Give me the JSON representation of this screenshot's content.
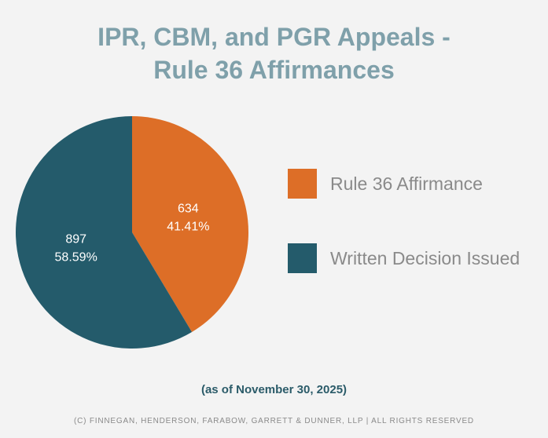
{
  "chart_data": {
    "type": "pie",
    "title_lines": [
      "IPR, CBM, and PGR Appeals -",
      "Rule 36 Affirmances"
    ],
    "slices": [
      {
        "label": "Rule 36 Affirmance",
        "value": 634,
        "percent_label": "41.41%",
        "color": "#dd6e27"
      },
      {
        "label": "Written Decision Issued",
        "value": 897,
        "percent_label": "58.59%",
        "color": "#245b6b"
      }
    ],
    "legend_placement": "right",
    "start": "top",
    "direction": "clockwise"
  },
  "subtitle": "(as of November 30, 2025)",
  "footer": "(C) FINNEGAN, HENDERSON, FARABOW, GARRETT & DUNNER, LLP | ALL RIGHTS RESERVED"
}
